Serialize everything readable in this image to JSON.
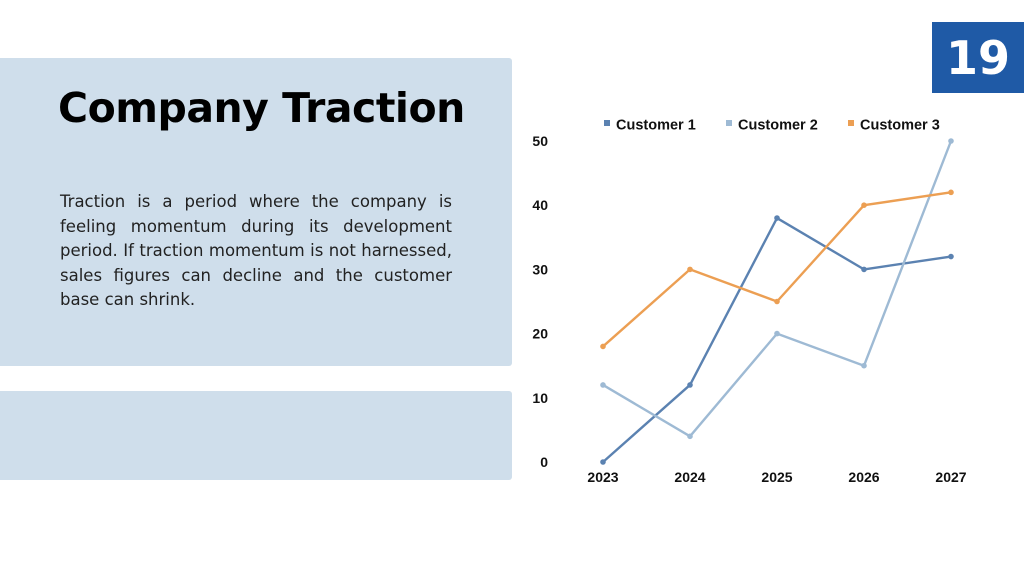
{
  "slide": {
    "number": "19"
  },
  "content": {
    "title": "Company Traction",
    "body": "Traction is a period where the company is feeling momentum during its development period. If traction momentum is not harnessed, sales figures can decline and the customer base can shrink."
  },
  "colors": {
    "accent": "#1f5aa6",
    "panel": "#cfdeeb",
    "customer_1": "#5b82b1",
    "customer_2": "#9ebad4",
    "customer_3": "#ec9f53"
  },
  "chart_data": {
    "type": "line",
    "categories": [
      "2023",
      "2024",
      "2025",
      "2026",
      "2027"
    ],
    "series": [
      {
        "name": "Customer 1",
        "values": [
          0,
          12,
          38,
          30,
          32
        ]
      },
      {
        "name": "Customer 2",
        "values": [
          12,
          4,
          20,
          15,
          50
        ]
      },
      {
        "name": "Customer 3",
        "values": [
          18,
          30,
          25,
          40,
          42
        ]
      }
    ],
    "ylim": [
      0,
      50
    ],
    "yticks": [
      0,
      10,
      20,
      30,
      40,
      50
    ],
    "grid": false,
    "legend": "top"
  }
}
